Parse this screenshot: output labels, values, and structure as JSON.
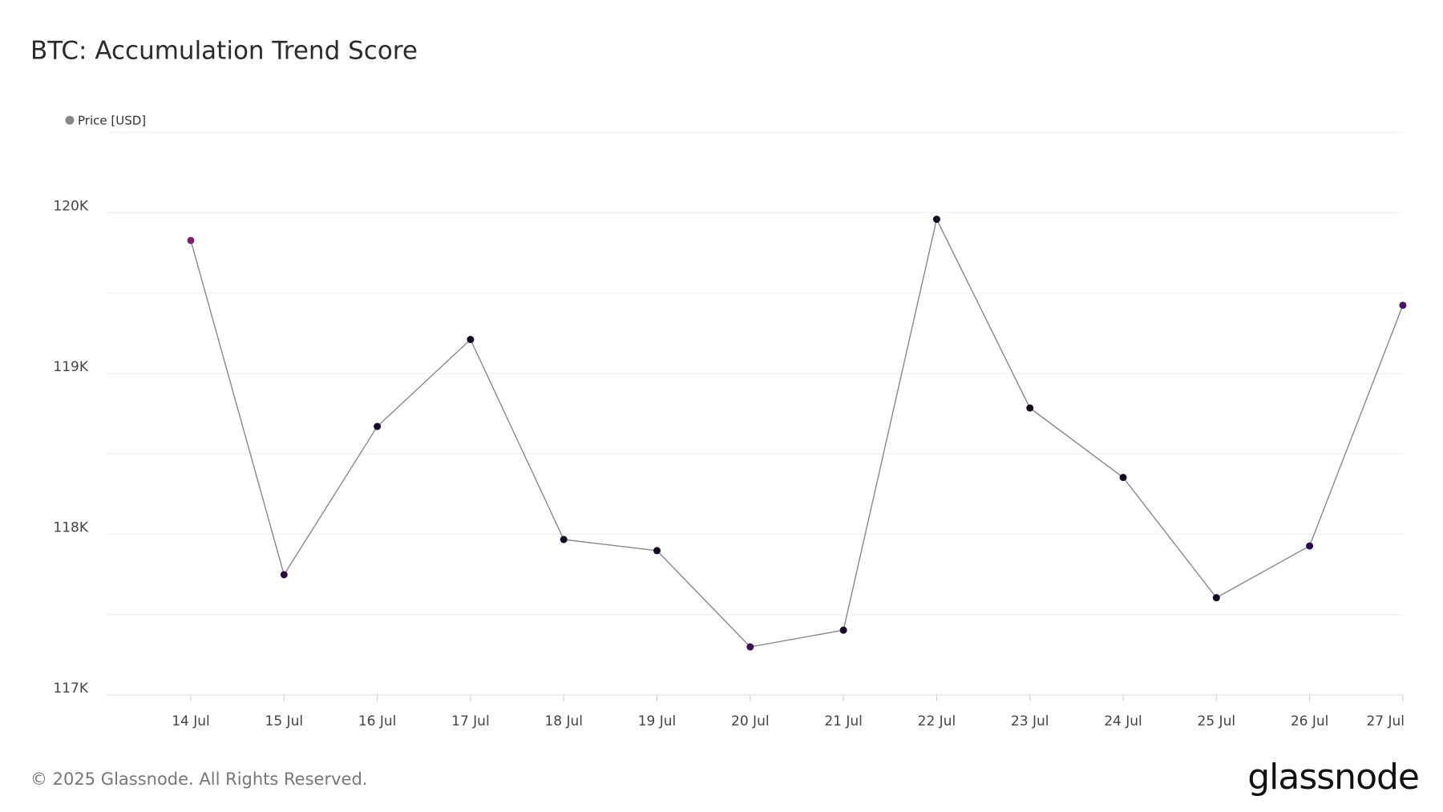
{
  "chart_data": {
    "type": "line",
    "title": "BTC: Accumulation Trend Score",
    "categories": [
      "14 Jul",
      "15 Jul",
      "16 Jul",
      "17 Jul",
      "18 Jul",
      "19 Jul",
      "20 Jul",
      "21 Jul",
      "22 Jul",
      "23 Jul",
      "24 Jul",
      "25 Jul",
      "26 Jul",
      "27 Jul"
    ],
    "series": [
      {
        "name": "Price [USD]",
        "color": "#888888",
        "values": [
          119827,
          117748,
          118670,
          119211,
          117967,
          117898,
          117299,
          117403,
          119959,
          118785,
          118353,
          117605,
          117927,
          119424
        ],
        "point_colors": [
          "#7a2070",
          "#2a0b3e",
          "#1a0a30",
          "#150822",
          "#150822",
          "#150822",
          "#3a0f55",
          "#150822",
          "#150822",
          "#150822",
          "#150822",
          "#150822",
          "#2a0b50",
          "#4a1370"
        ]
      }
    ],
    "ylim": [
      117000,
      120500
    ],
    "yticks": [
      {
        "value": 117000,
        "label": "117K"
      },
      {
        "value": 118000,
        "label": "118K"
      },
      {
        "value": 119000,
        "label": "119K"
      },
      {
        "value": 120000,
        "label": "120K"
      }
    ],
    "ygrid": [
      117000,
      117500,
      118000,
      118500,
      119000,
      119500,
      120000,
      120500
    ],
    "grid": true,
    "footer": "© 2025 Glassnode. All Rights Reserved.",
    "logo": "glassnode"
  }
}
